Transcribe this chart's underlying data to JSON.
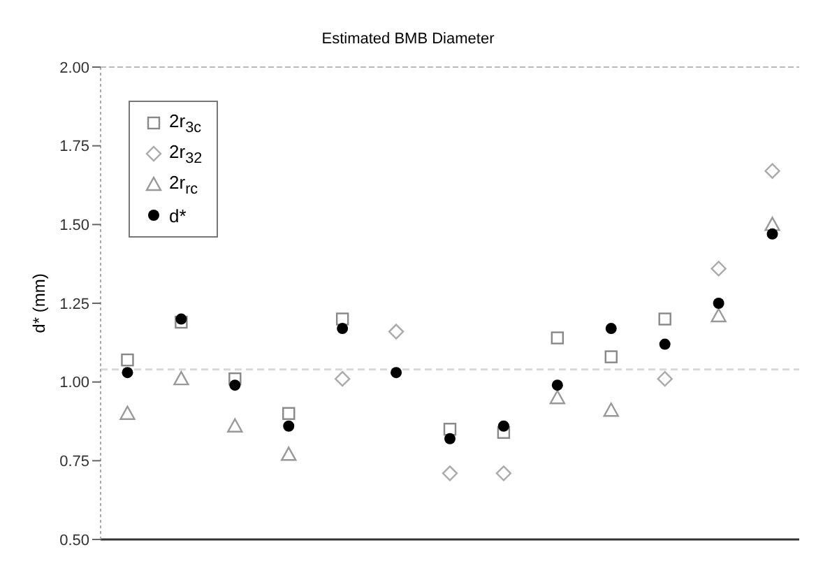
{
  "chart_data": {
    "type": "scatter",
    "title": "Estimated BMB Diameter",
    "ylabel": "d* (mm)",
    "categories": [
      null,
      null,
      null,
      null,
      null,
      null,
      null,
      null,
      null,
      null,
      null,
      null,
      null
    ],
    "ylim": [
      0.5,
      2
    ],
    "yticks": [
      {
        "value": 0.5,
        "label": "0.50"
      },
      {
        "value": 0.75,
        "label": "0.75"
      },
      {
        "value": 1,
        "label": "1.00"
      },
      {
        "value": 1.25,
        "label": "1.25"
      },
      {
        "value": 1.5,
        "label": "1.50"
      },
      {
        "value": 1.75,
        "label": "1.75"
      },
      {
        "value": 2,
        "label": "2.00"
      }
    ],
    "grid": false,
    "legend": "top left",
    "tick_labels": "y",
    "ref_lines": [
      {
        "axis": "y",
        "value": 1.04,
        "color": "#d8d8d8",
        "line_style": "dashed"
      }
    ],
    "series": [
      {
        "name": "2r$_{3c}$",
        "color": "#888888",
        "marker": "square",
        "values": [
          1.07,
          1.19,
          1.01,
          0.9,
          1.2,
          null,
          0.85,
          0.84,
          1.14,
          1.08,
          1.2,
          null,
          null
        ]
      },
      {
        "name": "2r$_{32}$",
        "color": "#aaaaaa",
        "marker": "diamond",
        "values": [
          null,
          null,
          null,
          null,
          1.01,
          1.16,
          0.71,
          0.71,
          null,
          null,
          1.01,
          1.36,
          1.67
        ]
      },
      {
        "name": "2r$_{rc}$",
        "color": "#999999",
        "marker": "triangle",
        "values": [
          0.9,
          1.01,
          0.86,
          0.77,
          null,
          null,
          null,
          null,
          0.95,
          0.91,
          null,
          1.21,
          1.5
        ]
      },
      {
        "name": "d*",
        "color": "#000000",
        "marker": "circle",
        "values": [
          1.03,
          1.2,
          0.99,
          0.86,
          1.17,
          1.03,
          0.82,
          0.86,
          0.99,
          1.17,
          1.12,
          1.25,
          1.47
        ]
      }
    ]
  }
}
